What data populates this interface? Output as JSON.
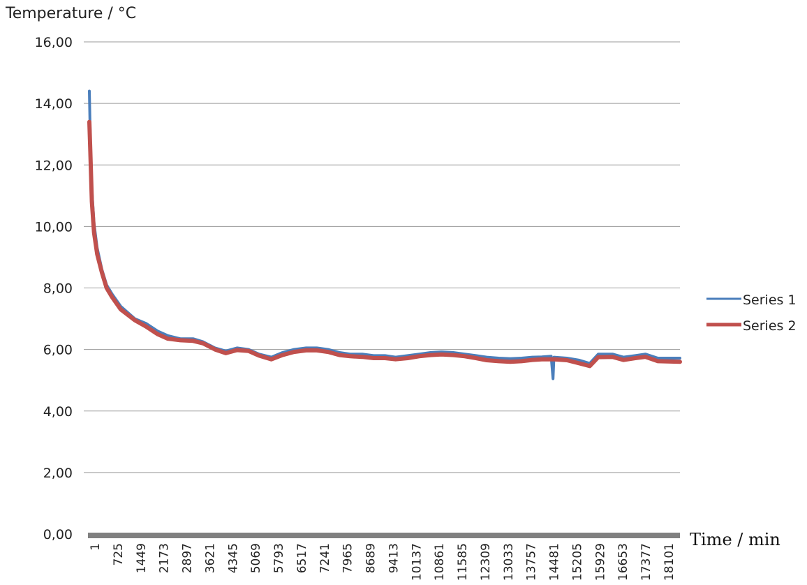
{
  "chart_data": {
    "type": "line",
    "ylabel": "Temperature / °C",
    "xlabel": "Time / min",
    "ylim": [
      0,
      16
    ],
    "xlim": [
      1,
      18800
    ],
    "yticks": [
      "0,00",
      "2,00",
      "4,00",
      "6,00",
      "8,00",
      "10,00",
      "12,00",
      "14,00",
      "16,00"
    ],
    "ytick_values": [
      0,
      2,
      4,
      6,
      8,
      10,
      12,
      14,
      16
    ],
    "xticks": [
      "1",
      "725",
      "1449",
      "2173",
      "2897",
      "3621",
      "4345",
      "5069",
      "5793",
      "6517",
      "7241",
      "7965",
      "8689",
      "9413",
      "10137",
      "10861",
      "11585",
      "12309",
      "13033",
      "13757",
      "14481",
      "15205",
      "15929",
      "16653",
      "17377",
      "18101"
    ],
    "grid": true,
    "legend_position": "right",
    "series": [
      {
        "name": "Series 1",
        "color": "#4a7ebb",
        "points": [
          [
            1,
            14.4
          ],
          [
            30,
            12.9
          ],
          [
            80,
            11.2
          ],
          [
            150,
            10.1
          ],
          [
            250,
            9.3
          ],
          [
            400,
            8.6
          ],
          [
            550,
            8.1
          ],
          [
            725,
            7.8
          ],
          [
            1000,
            7.4
          ],
          [
            1449,
            7.0
          ],
          [
            1800,
            6.85
          ],
          [
            2173,
            6.6
          ],
          [
            2500,
            6.45
          ],
          [
            2897,
            6.35
          ],
          [
            3300,
            6.35
          ],
          [
            3621,
            6.25
          ],
          [
            4000,
            6.05
          ],
          [
            4345,
            5.95
          ],
          [
            4700,
            6.05
          ],
          [
            5069,
            6.0
          ],
          [
            5400,
            5.85
          ],
          [
            5793,
            5.75
          ],
          [
            6150,
            5.9
          ],
          [
            6517,
            6.0
          ],
          [
            6900,
            6.05
          ],
          [
            7241,
            6.05
          ],
          [
            7600,
            6.0
          ],
          [
            7965,
            5.9
          ],
          [
            8300,
            5.85
          ],
          [
            8689,
            5.85
          ],
          [
            9050,
            5.8
          ],
          [
            9413,
            5.8
          ],
          [
            9750,
            5.75
          ],
          [
            10137,
            5.8
          ],
          [
            10500,
            5.85
          ],
          [
            10861,
            5.9
          ],
          [
            11200,
            5.92
          ],
          [
            11585,
            5.9
          ],
          [
            11950,
            5.85
          ],
          [
            12309,
            5.8
          ],
          [
            12650,
            5.75
          ],
          [
            13033,
            5.72
          ],
          [
            13400,
            5.7
          ],
          [
            13757,
            5.72
          ],
          [
            14100,
            5.75
          ],
          [
            14400,
            5.76
          ],
          [
            14700,
            5.78
          ],
          [
            14760,
            5.05
          ],
          [
            14790,
            5.75
          ],
          [
            15205,
            5.72
          ],
          [
            15600,
            5.65
          ],
          [
            15929,
            5.55
          ],
          [
            16200,
            5.85
          ],
          [
            16653,
            5.85
          ],
          [
            17000,
            5.75
          ],
          [
            17377,
            5.8
          ],
          [
            17700,
            5.85
          ],
          [
            18101,
            5.72
          ],
          [
            18800,
            5.72
          ]
        ]
      },
      {
        "name": "Series 2",
        "color": "#c0504d",
        "points": [
          [
            1,
            13.4
          ],
          [
            30,
            12.5
          ],
          [
            80,
            10.8
          ],
          [
            150,
            9.8
          ],
          [
            250,
            9.1
          ],
          [
            400,
            8.5
          ],
          [
            550,
            8.0
          ],
          [
            725,
            7.7
          ],
          [
            1000,
            7.3
          ],
          [
            1449,
            6.95
          ],
          [
            1800,
            6.75
          ],
          [
            2173,
            6.5
          ],
          [
            2500,
            6.35
          ],
          [
            2897,
            6.3
          ],
          [
            3300,
            6.28
          ],
          [
            3621,
            6.2
          ],
          [
            4000,
            6.0
          ],
          [
            4345,
            5.88
          ],
          [
            4700,
            5.98
          ],
          [
            5069,
            5.95
          ],
          [
            5400,
            5.8
          ],
          [
            5793,
            5.68
          ],
          [
            6150,
            5.82
          ],
          [
            6517,
            5.92
          ],
          [
            6900,
            5.97
          ],
          [
            7241,
            5.97
          ],
          [
            7600,
            5.92
          ],
          [
            7965,
            5.82
          ],
          [
            8300,
            5.78
          ],
          [
            8689,
            5.76
          ],
          [
            9050,
            5.72
          ],
          [
            9413,
            5.72
          ],
          [
            9750,
            5.68
          ],
          [
            10137,
            5.72
          ],
          [
            10500,
            5.78
          ],
          [
            10861,
            5.82
          ],
          [
            11200,
            5.84
          ],
          [
            11585,
            5.82
          ],
          [
            11950,
            5.78
          ],
          [
            12309,
            5.72
          ],
          [
            12650,
            5.65
          ],
          [
            13033,
            5.62
          ],
          [
            13400,
            5.6
          ],
          [
            13757,
            5.62
          ],
          [
            14100,
            5.66
          ],
          [
            14400,
            5.68
          ],
          [
            14800,
            5.68
          ],
          [
            15205,
            5.65
          ],
          [
            15600,
            5.55
          ],
          [
            15929,
            5.46
          ],
          [
            16200,
            5.75
          ],
          [
            16653,
            5.76
          ],
          [
            17000,
            5.66
          ],
          [
            17377,
            5.72
          ],
          [
            17700,
            5.76
          ],
          [
            18101,
            5.62
          ],
          [
            18800,
            5.6
          ]
        ]
      }
    ]
  }
}
